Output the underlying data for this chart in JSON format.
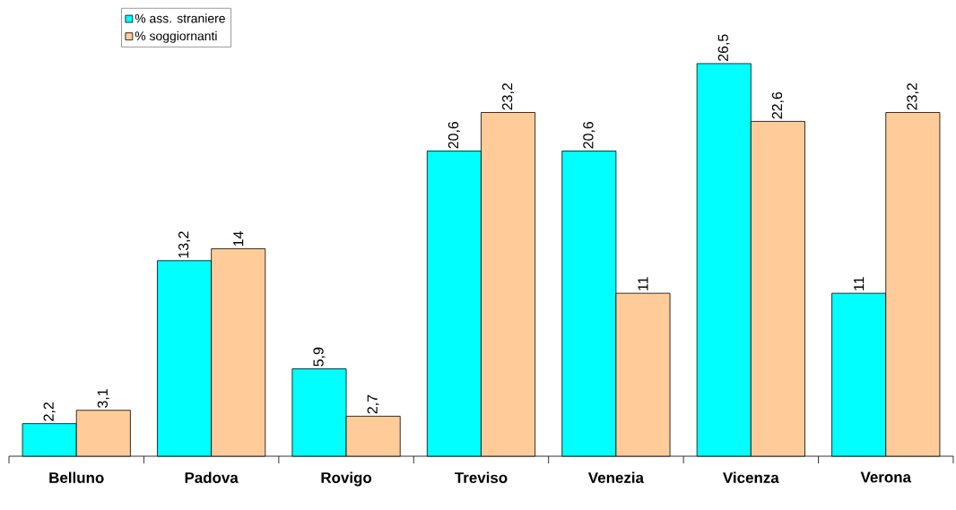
{
  "chart_data": {
    "type": "bar",
    "categories": [
      "Belluno",
      "Padova",
      "Rovigo",
      "Treviso",
      "Venezia",
      "Vicenza",
      "Verona"
    ],
    "series": [
      {
        "name": "% ass. straniere",
        "color": "#00ffff",
        "values": [
          2.2,
          13.2,
          5.9,
          20.6,
          20.6,
          26.5,
          11
        ],
        "value_labels": [
          "2,2",
          "13,2",
          "5,9",
          "20,6",
          "20,6",
          "26,5",
          "11"
        ]
      },
      {
        "name": "% soggiornanti",
        "color": "#ffcc99",
        "values": [
          3.1,
          14,
          2.7,
          23.2,
          11,
          22.6,
          23.2
        ],
        "value_labels": [
          "3,1",
          "14",
          "2,7",
          "23,2",
          "11",
          "22,6",
          "23,2"
        ]
      }
    ],
    "legend": "top left",
    "grid": false
  }
}
